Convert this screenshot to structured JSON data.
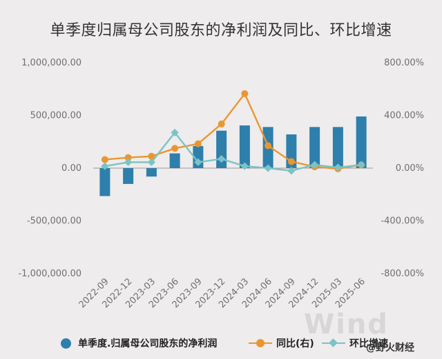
{
  "colors": {
    "background": "#eeecec",
    "bar": "#2e7fab",
    "yoy": "#ea9630",
    "qoq": "#7bc3c6",
    "zero_line": "#9a9a9a",
    "axis_text": "#6f6f6f"
  },
  "watermark": {
    "logo": "Wind",
    "brand": "@野火财经"
  },
  "chart_data": {
    "type": "bar+line",
    "title": "单季度归属母公司股东的净利润及同比、环比增速",
    "categories": [
      "2022-09",
      "2022-12",
      "2023-03",
      "2023-06",
      "2023-09",
      "2023-12",
      "2024-03",
      "2024-06",
      "2024-09",
      "2024-12",
      "2025-03",
      "2025-06"
    ],
    "left_axis": {
      "range": [
        -1000000,
        1000000
      ],
      "ticks": [
        1000000,
        500000,
        0,
        -500000,
        -1000000
      ],
      "tick_labels": [
        "1,000,000.00",
        "500,000.00",
        "0.00",
        "-500,000.00",
        "-1,000,000.00"
      ]
    },
    "right_axis": {
      "range": [
        -800,
        800
      ],
      "ticks": [
        800,
        400,
        0,
        -400,
        -800
      ],
      "tick_labels": [
        "800.00%",
        "400.00%",
        "0.00%",
        "-400.00%",
        "-800.00%"
      ]
    },
    "series": [
      {
        "name": "单季度.归属母公司股东的净利润",
        "type": "bar",
        "axis": "left",
        "values": [
          -265000,
          -150000,
          -80000,
          140000,
          210000,
          355000,
          405000,
          390000,
          320000,
          390000,
          390000,
          490000
        ]
      },
      {
        "name": "同比(右)",
        "type": "line",
        "axis": "right",
        "values": [
          65,
          80,
          90,
          150,
          185,
          335,
          565,
          170,
          50,
          10,
          -5,
          25
        ]
      },
      {
        "name": "环比增速",
        "type": "line",
        "axis": "right",
        "values": [
          15,
          45,
          45,
          270,
          45,
          70,
          15,
          0,
          -20,
          25,
          5,
          25
        ]
      }
    ],
    "legend_position": "bottom",
    "grid": false
  }
}
